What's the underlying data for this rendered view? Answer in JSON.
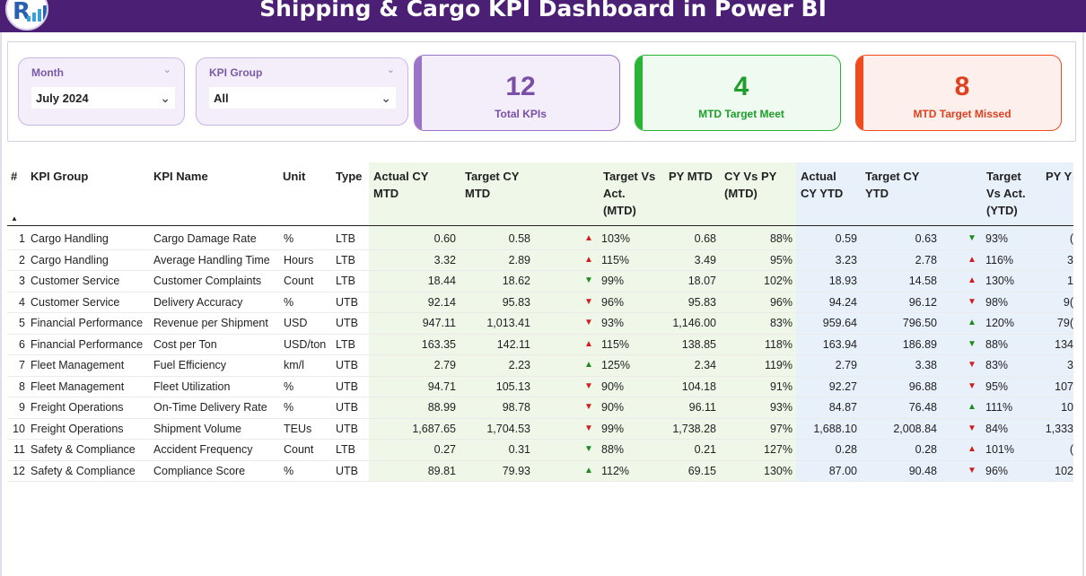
{
  "header": {
    "title": "Shipping & Cargo KPI Dashboard in Power BI",
    "logo_letter": "R",
    "logo_icon": "bar-chart-logo"
  },
  "filters": {
    "month": {
      "label": "Month",
      "value": "July 2024"
    },
    "kpi_group": {
      "label": "KPI Group",
      "value": "All"
    }
  },
  "cards": {
    "total": {
      "value": "12",
      "caption": "Total KPIs",
      "color": "#7a4fa8",
      "bg": "#f3eef9",
      "accent": "#9b74c8"
    },
    "meet": {
      "value": "4",
      "caption": "MTD Target Meet",
      "color": "#1e9e2a",
      "bg": "#effaf0",
      "accent": "#27b533"
    },
    "missed": {
      "value": "8",
      "caption": "MTD Target Missed",
      "color": "#e0401f",
      "bg": "#fdf0ec",
      "accent": "#f04a1e"
    }
  },
  "colors": {
    "banner": "#4b1f73",
    "mtd_band": "#eef7e8",
    "ytd_band": "#e8f0fa",
    "arrow_red": "#d21c1c",
    "arrow_green": "#1d8a1d"
  },
  "table": {
    "headers": {
      "num": "#",
      "group": "KPI Group",
      "name": "KPI Name",
      "unit": "Unit",
      "type": "Type",
      "actual_mtd": "Actual CY\nMTD",
      "target_mtd": "Target CY\nMTD",
      "tva_mtd": "Target Vs\nAct.\n(MTD)",
      "py_mtd": "PY MTD",
      "cy_py_mtd": "CY Vs PY\n(MTD)",
      "actual_ytd": "Actual\nCY YTD",
      "target_ytd": "Target CY\nYTD",
      "tva_ytd": "Target\nVs Act.\n(YTD)",
      "py_ytd": "PY Y"
    },
    "rows": [
      {
        "num": "1",
        "group": "Cargo Handling",
        "name": "Cargo Damage Rate",
        "unit": "%",
        "type": "LTB",
        "actual_mtd": "0.60",
        "target_mtd": "0.58",
        "mtd_dir": "up",
        "mtd_color": "red",
        "tva_mtd": "103%",
        "py_mtd": "0.68",
        "cy_py_mtd": "88%",
        "actual_ytd": "0.59",
        "target_ytd": "0.63",
        "ytd_dir": "down",
        "ytd_color": "green",
        "tva_ytd": "93%",
        "py_ytd": "("
      },
      {
        "num": "2",
        "group": "Cargo Handling",
        "name": "Average Handling Time",
        "unit": "Hours",
        "type": "LTB",
        "actual_mtd": "3.32",
        "target_mtd": "2.89",
        "mtd_dir": "up",
        "mtd_color": "red",
        "tva_mtd": "115%",
        "py_mtd": "3.49",
        "cy_py_mtd": "95%",
        "actual_ytd": "3.23",
        "target_ytd": "2.78",
        "ytd_dir": "up",
        "ytd_color": "red",
        "tva_ytd": "116%",
        "py_ytd": "3"
      },
      {
        "num": "3",
        "group": "Customer Service",
        "name": "Customer Complaints",
        "unit": "Count",
        "type": "LTB",
        "actual_mtd": "18.44",
        "target_mtd": "18.62",
        "mtd_dir": "down",
        "mtd_color": "green",
        "tva_mtd": "99%",
        "py_mtd": "18.07",
        "cy_py_mtd": "102%",
        "actual_ytd": "18.93",
        "target_ytd": "14.58",
        "ytd_dir": "up",
        "ytd_color": "red",
        "tva_ytd": "130%",
        "py_ytd": "1"
      },
      {
        "num": "4",
        "group": "Customer Service",
        "name": "Delivery Accuracy",
        "unit": "%",
        "type": "UTB",
        "actual_mtd": "92.14",
        "target_mtd": "95.83",
        "mtd_dir": "down",
        "mtd_color": "red",
        "tva_mtd": "96%",
        "py_mtd": "95.83",
        "cy_py_mtd": "96%",
        "actual_ytd": "94.24",
        "target_ytd": "96.12",
        "ytd_dir": "down",
        "ytd_color": "red",
        "tva_ytd": "98%",
        "py_ytd": "9("
      },
      {
        "num": "5",
        "group": "Financial Performance",
        "name": "Revenue per Shipment",
        "unit": "USD",
        "type": "UTB",
        "actual_mtd": "947.11",
        "target_mtd": "1,013.41",
        "mtd_dir": "down",
        "mtd_color": "red",
        "tva_mtd": "93%",
        "py_mtd": "1,146.00",
        "cy_py_mtd": "83%",
        "actual_ytd": "959.64",
        "target_ytd": "796.50",
        "ytd_dir": "up",
        "ytd_color": "green",
        "tva_ytd": "120%",
        "py_ytd": "79("
      },
      {
        "num": "6",
        "group": "Financial Performance",
        "name": "Cost per Ton",
        "unit": "USD/ton",
        "type": "LTB",
        "actual_mtd": "163.35",
        "target_mtd": "142.11",
        "mtd_dir": "up",
        "mtd_color": "red",
        "tva_mtd": "115%",
        "py_mtd": "138.85",
        "cy_py_mtd": "118%",
        "actual_ytd": "163.94",
        "target_ytd": "186.89",
        "ytd_dir": "down",
        "ytd_color": "green",
        "tva_ytd": "88%",
        "py_ytd": "134"
      },
      {
        "num": "7",
        "group": "Fleet Management",
        "name": "Fuel Efficiency",
        "unit": "km/l",
        "type": "UTB",
        "actual_mtd": "2.79",
        "target_mtd": "2.23",
        "mtd_dir": "up",
        "mtd_color": "green",
        "tva_mtd": "125%",
        "py_mtd": "2.34",
        "cy_py_mtd": "119%",
        "actual_ytd": "2.79",
        "target_ytd": "3.38",
        "ytd_dir": "down",
        "ytd_color": "red",
        "tva_ytd": "83%",
        "py_ytd": "3"
      },
      {
        "num": "8",
        "group": "Fleet Management",
        "name": "Fleet Utilization",
        "unit": "%",
        "type": "UTB",
        "actual_mtd": "94.71",
        "target_mtd": "105.13",
        "mtd_dir": "down",
        "mtd_color": "red",
        "tva_mtd": "90%",
        "py_mtd": "104.18",
        "cy_py_mtd": "91%",
        "actual_ytd": "92.27",
        "target_ytd": "96.88",
        "ytd_dir": "down",
        "ytd_color": "red",
        "tva_ytd": "95%",
        "py_ytd": "107"
      },
      {
        "num": "9",
        "group": "Freight Operations",
        "name": "On-Time Delivery Rate",
        "unit": "%",
        "type": "UTB",
        "actual_mtd": "88.99",
        "target_mtd": "98.78",
        "mtd_dir": "down",
        "mtd_color": "red",
        "tva_mtd": "90%",
        "py_mtd": "96.11",
        "cy_py_mtd": "93%",
        "actual_ytd": "84.87",
        "target_ytd": "76.48",
        "ytd_dir": "up",
        "ytd_color": "green",
        "tva_ytd": "111%",
        "py_ytd": "10"
      },
      {
        "num": "10",
        "group": "Freight Operations",
        "name": "Shipment Volume",
        "unit": "TEUs",
        "type": "UTB",
        "actual_mtd": "1,687.65",
        "target_mtd": "1,704.53",
        "mtd_dir": "down",
        "mtd_color": "red",
        "tva_mtd": "99%",
        "py_mtd": "1,738.28",
        "cy_py_mtd": "97%",
        "actual_ytd": "1,688.10",
        "target_ytd": "2,008.84",
        "ytd_dir": "down",
        "ytd_color": "red",
        "tva_ytd": "84%",
        "py_ytd": "1,333"
      },
      {
        "num": "11",
        "group": "Safety & Compliance",
        "name": "Accident Frequency",
        "unit": "Count",
        "type": "LTB",
        "actual_mtd": "0.27",
        "target_mtd": "0.31",
        "mtd_dir": "down",
        "mtd_color": "green",
        "tva_mtd": "88%",
        "py_mtd": "0.21",
        "cy_py_mtd": "127%",
        "actual_ytd": "0.28",
        "target_ytd": "0.28",
        "ytd_dir": "up",
        "ytd_color": "red",
        "tva_ytd": "101%",
        "py_ytd": "("
      },
      {
        "num": "12",
        "group": "Safety & Compliance",
        "name": "Compliance Score",
        "unit": "%",
        "type": "UTB",
        "actual_mtd": "89.81",
        "target_mtd": "79.93",
        "mtd_dir": "up",
        "mtd_color": "green",
        "tva_mtd": "112%",
        "py_mtd": "69.15",
        "cy_py_mtd": "130%",
        "actual_ytd": "87.00",
        "target_ytd": "90.48",
        "ytd_dir": "down",
        "ytd_color": "red",
        "tva_ytd": "96%",
        "py_ytd": "102"
      }
    ]
  }
}
